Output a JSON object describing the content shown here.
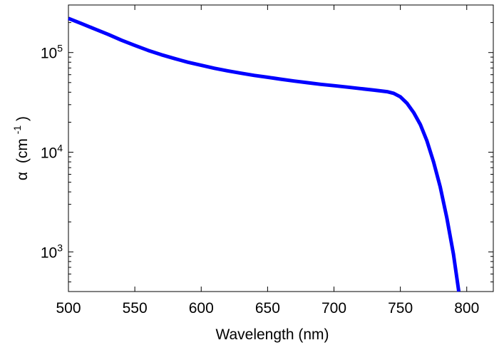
{
  "chart_data": {
    "type": "line",
    "title": "",
    "xlabel": "Wavelength (nm)",
    "ylabel_symbol": "α",
    "ylabel_unit": "(cm",
    "ylabel_exponent": "-1",
    "ylabel_close": ")",
    "xlim": [
      500,
      820
    ],
    "ylim": [
      400,
      300000
    ],
    "yscale": "log",
    "grid": false,
    "x_ticks": [
      500,
      550,
      600,
      650,
      700,
      750,
      800
    ],
    "x_tick_labels": [
      "500",
      "550",
      "600",
      "650",
      "700",
      "750",
      "800"
    ],
    "y_ticks": [
      {
        "value": 1000,
        "base": "10",
        "exp": "3"
      },
      {
        "value": 10000,
        "base": "10",
        "exp": "4"
      },
      {
        "value": 100000,
        "base": "10",
        "exp": "5"
      }
    ],
    "series": [
      {
        "color": "#0000ff",
        "x": [
          500,
          510,
          520,
          530,
          540,
          550,
          560,
          570,
          580,
          590,
          600,
          610,
          620,
          630,
          640,
          650,
          660,
          670,
          680,
          690,
          700,
          710,
          720,
          730,
          740,
          745,
          750,
          755,
          760,
          765,
          770,
          775,
          780,
          785,
          790,
          794
        ],
        "y": [
          220000,
          195000,
          172000,
          152000,
          133000,
          118000,
          105000,
          95000,
          87000,
          80000,
          74500,
          69500,
          65500,
          62000,
          59000,
          56500,
          54000,
          51800,
          49800,
          48000,
          46500,
          45000,
          43500,
          42000,
          40500,
          39000,
          36000,
          31000,
          25000,
          19000,
          13000,
          8000,
          4500,
          2200,
          950,
          400
        ]
      }
    ]
  }
}
